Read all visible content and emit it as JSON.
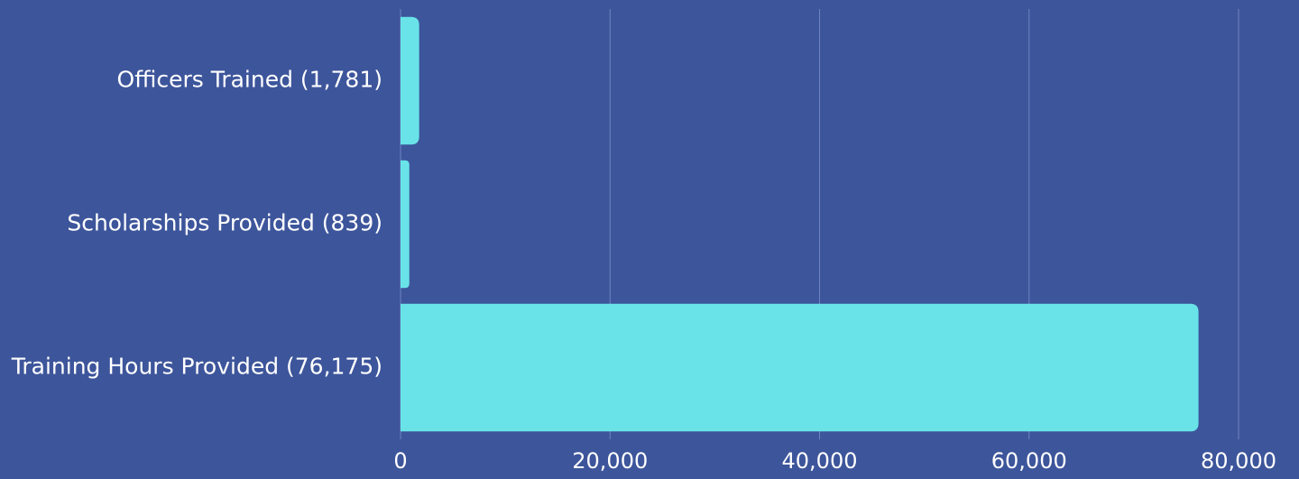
{
  "colors": {
    "background": "#3d559b",
    "bar": "#69e3e8",
    "grid": "#6f84c0",
    "text": "#ffffff"
  },
  "chart_data": {
    "type": "bar",
    "orientation": "horizontal",
    "categories": [
      "Officers Trained (1,781)",
      "Scholarships Provided (839)",
      "Training Hours Provided (76,175)"
    ],
    "values": [
      1781,
      839,
      76175
    ],
    "xlim": [
      0,
      80000
    ],
    "xticks": [
      0,
      20000,
      40000,
      60000,
      80000
    ],
    "xtick_labels": [
      "0",
      "20,000",
      "40,000",
      "60,000",
      "80,000"
    ],
    "grid": "vertical",
    "legend": "none"
  }
}
